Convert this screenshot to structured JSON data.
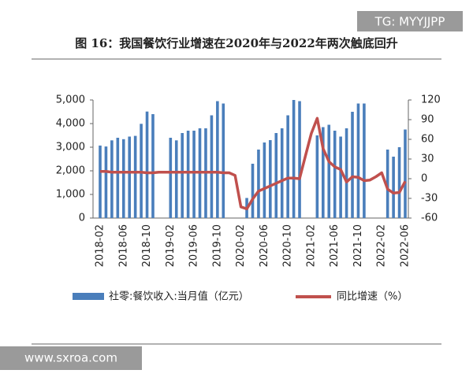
{
  "chart_data": {
    "type": "bar_line",
    "title": "图 16：我国餐饮行业增速在2020年与2022年两次触底回升",
    "watermark": "TG: MYYJJPP",
    "source_mark": "www.sxroa.com",
    "categories": [
      "2018-02",
      null,
      null,
      null,
      "2018-06",
      null,
      null,
      null,
      "2018-10",
      null,
      null,
      null,
      "2019-02",
      null,
      null,
      null,
      "2019-06",
      null,
      null,
      null,
      "2019-10",
      null,
      null,
      null,
      "2020-02",
      null,
      null,
      null,
      "2020-06",
      null,
      null,
      null,
      "2020-10",
      null,
      null,
      null,
      "2021-02",
      null,
      null,
      null,
      "2021-06",
      null,
      null,
      null,
      "2021-10",
      null,
      null,
      null,
      "2022-02",
      null,
      null,
      null,
      "2022-06"
    ],
    "series": [
      {
        "name": "社零:餐饮收入:当月值（亿元）",
        "color": "#4a7ebb",
        "axis": "y",
        "values": [
          3070,
          3030,
          3290,
          3400,
          3340,
          3450,
          3480,
          3990,
          4510,
          4400,
          null,
          null,
          3400,
          3290,
          3600,
          3700,
          3700,
          3800,
          3800,
          4350,
          4950,
          4850,
          null,
          null,
          null,
          850,
          2300,
          2900,
          3200,
          3300,
          3600,
          3800,
          4350,
          5000,
          4950,
          null,
          null,
          3500,
          3850,
          3950,
          3700,
          3450,
          3800,
          4500,
          4850,
          4850,
          null,
          null,
          null,
          2900,
          2600,
          3000,
          3750
        ]
      },
      {
        "name": "同比增速（%）",
        "color": "#c0504d",
        "axis": "y2",
        "values": [
          11,
          11,
          10,
          10,
          10,
          10,
          10,
          10,
          9,
          9,
          10,
          10,
          10,
          10,
          10,
          10,
          10,
          10,
          10,
          10,
          10,
          9,
          9,
          5,
          -43,
          -46,
          -31,
          -19,
          -15,
          -11,
          -7,
          -3,
          1,
          1,
          0,
          35,
          69,
          92,
          46,
          26,
          18,
          14,
          -5,
          3,
          2,
          -3,
          -2,
          3,
          9,
          -16,
          -22,
          -21,
          -4
        ]
      }
    ],
    "ylim": [
      0,
      5000
    ],
    "yticks": [
      0,
      {
        "value": 1000,
        "label": "1,000"
      },
      {
        "value": 2000,
        "label": "2,000"
      },
      {
        "value": 3000,
        "label": "3,000"
      },
      {
        "value": 4000,
        "label": "4,000"
      },
      {
        "value": 5000,
        "label": "5,000"
      }
    ],
    "y2lim": [
      -60,
      120
    ],
    "y2ticks": [
      -60,
      -30,
      0,
      30,
      60,
      90,
      120
    ]
  }
}
